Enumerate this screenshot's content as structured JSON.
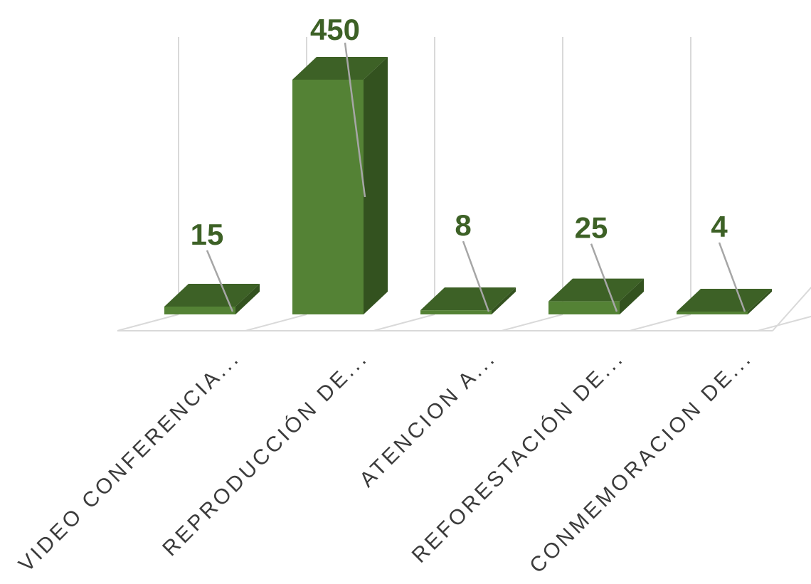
{
  "chart_data": {
    "type": "bar",
    "style": "3d-column",
    "categories": [
      "VIDEO CONFERENCIA...",
      "REPRODUCCIÓN DE...",
      "ATENCION A...",
      "REFORESTACIÓN DE...",
      "CONMEMORACION DE..."
    ],
    "values": [
      15,
      450,
      8,
      25,
      4
    ],
    "data_labels": [
      "15",
      "450",
      "8",
      "25",
      "4"
    ],
    "title": "",
    "xlabel": "",
    "ylabel": "",
    "ylim": [
      0,
      450
    ],
    "grid": true,
    "legend": "none",
    "colors": {
      "bar_front": "#548235",
      "bar_top": "#3d6126",
      "bar_side": "#33521f",
      "label_text": "#3d6126",
      "leader_line": "#a6a6a6",
      "grid_line": "#d9d9d9",
      "axis_text": "#3b3b3b"
    }
  }
}
